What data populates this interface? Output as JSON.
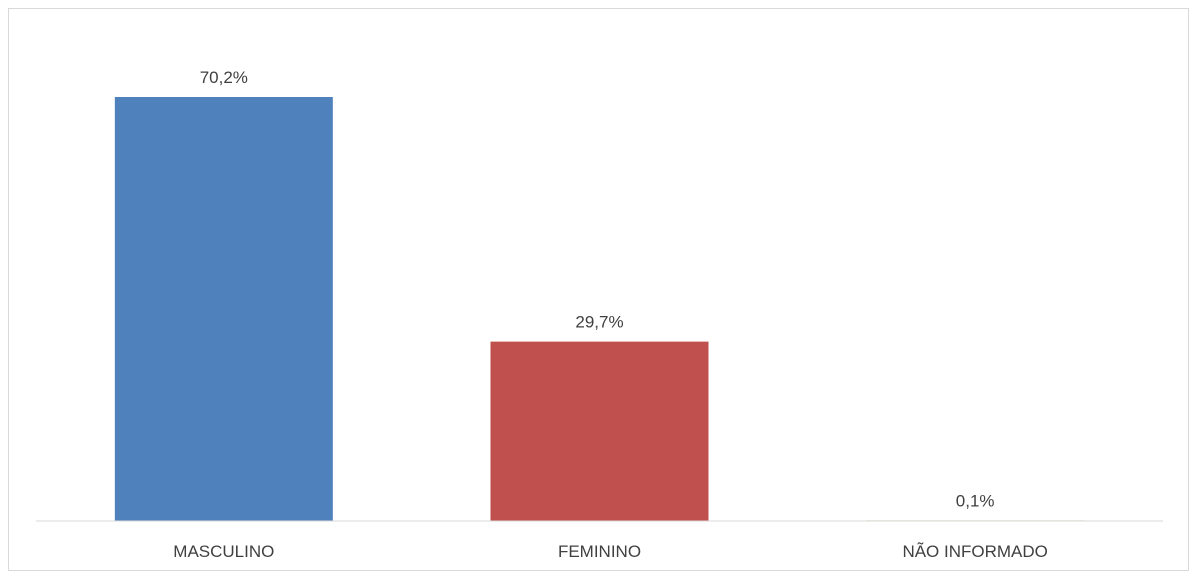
{
  "chart_data": {
    "type": "bar",
    "title": "",
    "xlabel": "",
    "ylabel": "",
    "categories": [
      "MASCULINO",
      "FEMININO",
      "NÃO INFORMADO"
    ],
    "values": [
      70.2,
      29.7,
      0.1
    ],
    "data_labels": [
      "70,2%",
      "29,7%",
      "0,1%"
    ],
    "colors": [
      "#4f81bd",
      "#c0504d",
      "#9bbb59"
    ],
    "ylim": [
      0,
      70.2
    ],
    "grid": false,
    "legend": "none",
    "axis_line_color": "#d9d9d9",
    "text_color": "#404040"
  }
}
